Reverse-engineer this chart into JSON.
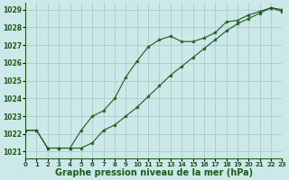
{
  "background_color": "#cce8e8",
  "grid_color": "#aacccc",
  "line_color": "#1a5c1a",
  "marker_color": "#1a5c1a",
  "title": "Graphe pression niveau de la mer (hPa)",
  "title_fontsize": 7.0,
  "xlim": [
    0,
    23
  ],
  "ylim": [
    1020.6,
    1029.4
  ],
  "yticks": [
    1021,
    1022,
    1023,
    1024,
    1025,
    1026,
    1027,
    1028,
    1029
  ],
  "xticks": [
    0,
    1,
    2,
    3,
    4,
    5,
    6,
    7,
    8,
    9,
    10,
    11,
    12,
    13,
    14,
    15,
    16,
    17,
    18,
    19,
    20,
    21,
    22,
    23
  ],
  "series1_x": [
    0,
    1,
    2,
    3,
    4,
    5,
    6,
    7,
    8,
    9,
    10,
    11,
    12,
    13,
    14,
    15,
    16,
    17,
    18,
    19,
    20,
    21,
    22,
    23
  ],
  "series1_y": [
    1022.2,
    1022.2,
    1021.2,
    1021.2,
    1021.2,
    1022.2,
    1023.0,
    1023.3,
    1024.0,
    1025.2,
    1026.1,
    1026.9,
    1027.3,
    1027.5,
    1027.2,
    1027.2,
    1027.4,
    1027.7,
    1028.3,
    1028.4,
    1028.7,
    1028.9,
    1029.1,
    1029.0
  ],
  "series2_x": [
    0,
    1,
    2,
    3,
    4,
    5,
    6,
    7,
    8,
    9,
    10,
    11,
    12,
    13,
    14,
    15,
    16,
    17,
    18,
    19,
    20,
    21,
    22,
    23
  ],
  "series2_y": [
    1022.2,
    1022.2,
    1021.2,
    1021.2,
    1021.2,
    1021.2,
    1021.5,
    1022.2,
    1022.5,
    1023.0,
    1023.5,
    1024.1,
    1024.7,
    1025.3,
    1025.8,
    1026.3,
    1026.8,
    1027.3,
    1027.8,
    1028.2,
    1028.5,
    1028.8,
    1029.1,
    1028.9
  ]
}
